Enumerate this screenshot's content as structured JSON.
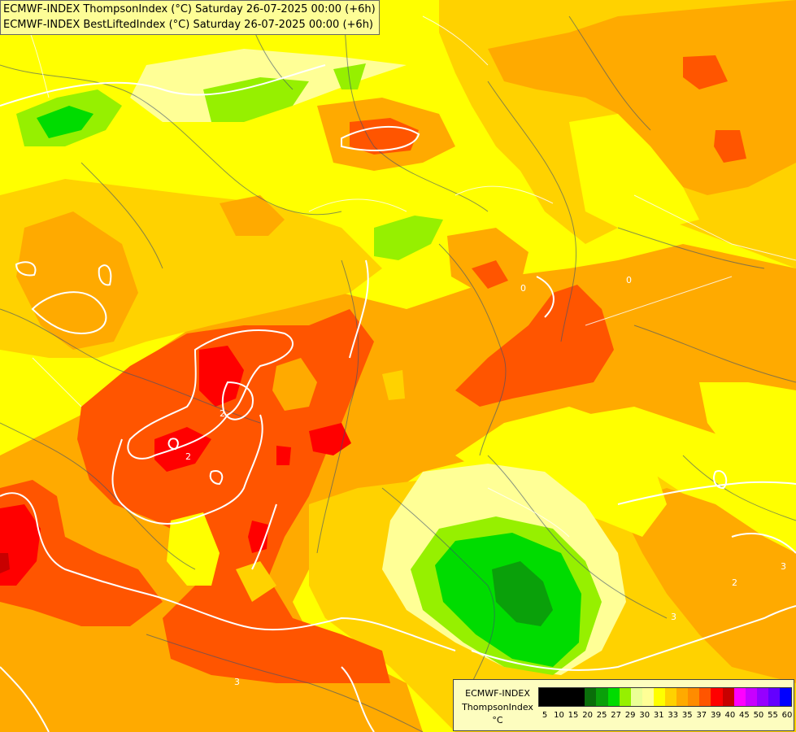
{
  "title": {
    "line1": "ECMWF-INDEX ThompsonIndex (°C) Saturday 26-07-2025 00:00 (+6h)",
    "line2": "ECMWF-INDEX BestLiftedIndex (°C) Saturday 26-07-2025 00:00 (+6h)"
  },
  "legend": {
    "model": "ECMWF-INDEX",
    "parameter": "ThompsonIndex",
    "unit": "°C",
    "colors": [
      "#000000",
      "#000000",
      "#000000",
      "#000000",
      "#0a6e0a",
      "#0aa00a",
      "#00dc00",
      "#96f000",
      "#ebff96",
      "#ffff96",
      "#ffff00",
      "#ffd200",
      "#ffaa00",
      "#ff8c00",
      "#ff5500",
      "#ff0000",
      "#c80000",
      "#ff00ff",
      "#c800ff",
      "#9600ff",
      "#6400ff",
      "#0000ff"
    ],
    "ticks": [
      "5",
      "10",
      "15",
      "20",
      "25",
      "27",
      "29",
      "30",
      "31",
      "33",
      "35",
      "37",
      "39",
      "40",
      "45",
      "50",
      "55",
      "60"
    ]
  },
  "map_colors": {
    "light_yellow": "#ffff96",
    "yellow": "#ffff00",
    "gold": "#ffd200",
    "orange": "#ffaa00",
    "dark_orange": "#ff5500",
    "red": "#ff0000",
    "lime": "#96f000",
    "green": "#00dc00",
    "dark_green": "#0aa00a"
  },
  "contour_labels": [
    "0",
    "0",
    "2",
    "2",
    "2",
    "3",
    "3",
    "3",
    "3"
  ]
}
